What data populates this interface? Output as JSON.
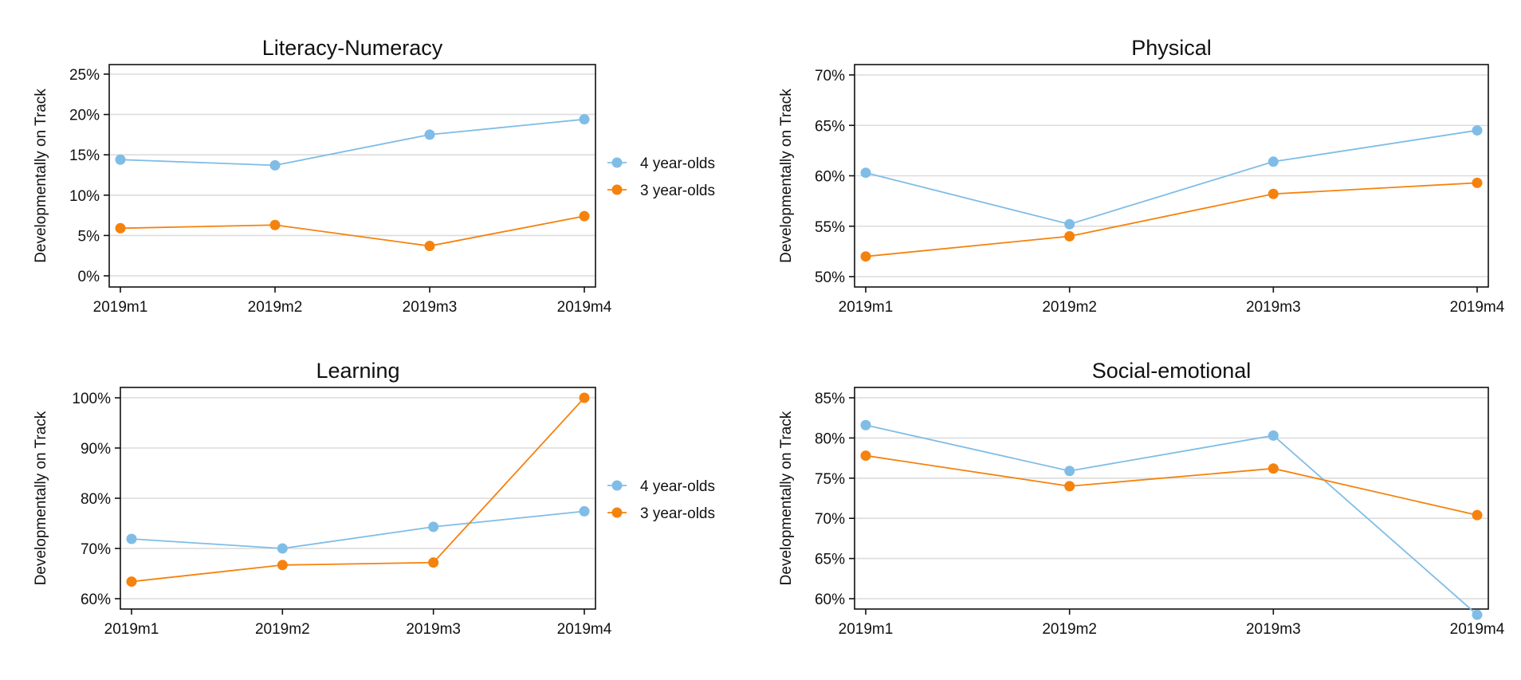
{
  "chart_data": [
    {
      "type": "line",
      "title": "Literacy-Numeracy",
      "ylabel": "Developmentally on Track",
      "xlabel": "",
      "categories": [
        "2019m1",
        "2019m2",
        "2019m3",
        "2019m4"
      ],
      "yticks": [
        "0%",
        "5%",
        "10%",
        "15%",
        "20%",
        "25%"
      ],
      "ylim": [
        0,
        25
      ],
      "grid": true,
      "series": [
        {
          "name": "4 year-olds",
          "color": "#7fbde6",
          "values": [
            14.4,
            13.7,
            17.5,
            19.4
          ]
        },
        {
          "name": "3 year-olds",
          "color": "#f5820d",
          "values": [
            5.9,
            6.3,
            3.7,
            7.4
          ]
        }
      ],
      "legend": "right"
    },
    {
      "type": "line",
      "title": "Physical",
      "ylabel": "Developmentally on Track",
      "xlabel": "",
      "categories": [
        "2019m1",
        "2019m2",
        "2019m3",
        "2019m4"
      ],
      "yticks": [
        "50%",
        "55%",
        "60%",
        "65%",
        "70%"
      ],
      "ylim": [
        50,
        70
      ],
      "grid": true,
      "series": [
        {
          "name": "4 year-olds",
          "color": "#7fbde6",
          "values": [
            60.3,
            55.2,
            61.4,
            64.5
          ]
        },
        {
          "name": "3 year-olds",
          "color": "#f5820d",
          "values": [
            52.0,
            54.0,
            58.2,
            59.3
          ]
        }
      ]
    },
    {
      "type": "line",
      "title": "Learning",
      "ylabel": "Developmentally on Track",
      "xlabel": "",
      "categories": [
        "2019m1",
        "2019m2",
        "2019m3",
        "2019m4"
      ],
      "yticks": [
        "60%",
        "70%",
        "80%",
        "90%",
        "100%"
      ],
      "ylim": [
        60,
        100
      ],
      "grid": true,
      "series": [
        {
          "name": "4 year-olds",
          "color": "#7fbde6",
          "values": [
            71.9,
            70.0,
            74.3,
            77.4
          ]
        },
        {
          "name": "3 year-olds",
          "color": "#f5820d",
          "values": [
            63.4,
            66.7,
            67.2,
            100.0
          ]
        }
      ],
      "legend": "right"
    },
    {
      "type": "line",
      "title": "Social-emotional",
      "ylabel": "Developmentally on Track",
      "xlabel": "",
      "categories": [
        "2019m1",
        "2019m2",
        "2019m3",
        "2019m4"
      ],
      "yticks": [
        "60%",
        "65%",
        "70%",
        "75%",
        "80%",
        "85%"
      ],
      "ylim": [
        60,
        85
      ],
      "grid": true,
      "series": [
        {
          "name": "4 year-olds",
          "color": "#7fbde6",
          "values": [
            81.6,
            75.9,
            80.3,
            58.0
          ]
        },
        {
          "name": "3 year-olds",
          "color": "#f5820d",
          "values": [
            77.8,
            74.0,
            76.2,
            70.4
          ]
        }
      ]
    }
  ],
  "legends": [
    {
      "items": [
        {
          "label": "4 year-olds",
          "color": "#7fbde6"
        },
        {
          "label": "3 year-olds",
          "color": "#f5820d"
        }
      ]
    },
    {
      "items": [
        {
          "label": "4 year-olds",
          "color": "#7fbde6"
        },
        {
          "label": "3 year-olds",
          "color": "#f5820d"
        }
      ]
    }
  ]
}
